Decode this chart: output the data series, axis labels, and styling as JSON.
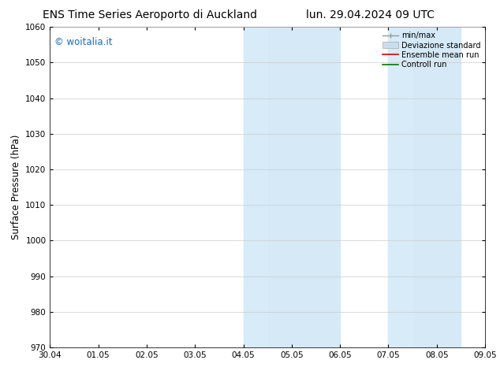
{
  "title_left": "ENS Time Series Aeroporto di Auckland",
  "title_right": "lun. 29.04.2024 09 UTC",
  "ylabel": "Surface Pressure (hPa)",
  "ylim": [
    970,
    1060
  ],
  "yticks": [
    970,
    980,
    990,
    1000,
    1010,
    1020,
    1030,
    1040,
    1050,
    1060
  ],
  "xtick_labels": [
    "30.04",
    "01.05",
    "02.05",
    "03.05",
    "04.05",
    "05.05",
    "06.05",
    "07.05",
    "08.05",
    "09.05"
  ],
  "xtick_positions": [
    0,
    1,
    2,
    3,
    4,
    5,
    6,
    7,
    8,
    9
  ],
  "shade_bands": [
    {
      "x_start": 4.0,
      "x_end": 4.5,
      "color": "#ddeef8"
    },
    {
      "x_start": 4.5,
      "x_end": 6.0,
      "color": "#d0e8f5"
    },
    {
      "x_start": 7.0,
      "x_end": 7.5,
      "color": "#ddeef8"
    },
    {
      "x_start": 7.5,
      "x_end": 8.5,
      "color": "#d0e8f5"
    }
  ],
  "watermark_text": "© woitalia.it",
  "watermark_color": "#1a6abf",
  "background_color": "#ffffff",
  "legend_items": [
    {
      "label": "min/max",
      "color": "#999999",
      "lw": 1.0,
      "style": "minmax"
    },
    {
      "label": "Deviazione standard",
      "color": "#c8dff0",
      "lw": 8,
      "style": "band"
    },
    {
      "label": "Ensemble mean run",
      "color": "#dd0000",
      "lw": 1.2,
      "style": "line"
    },
    {
      "label": "Controll run",
      "color": "#007700",
      "lw": 1.2,
      "style": "line"
    }
  ],
  "grid_color": "#cccccc",
  "title_fontsize": 10,
  "tick_fontsize": 7.5,
  "ylabel_fontsize": 8.5,
  "watermark_fontsize": 8.5
}
